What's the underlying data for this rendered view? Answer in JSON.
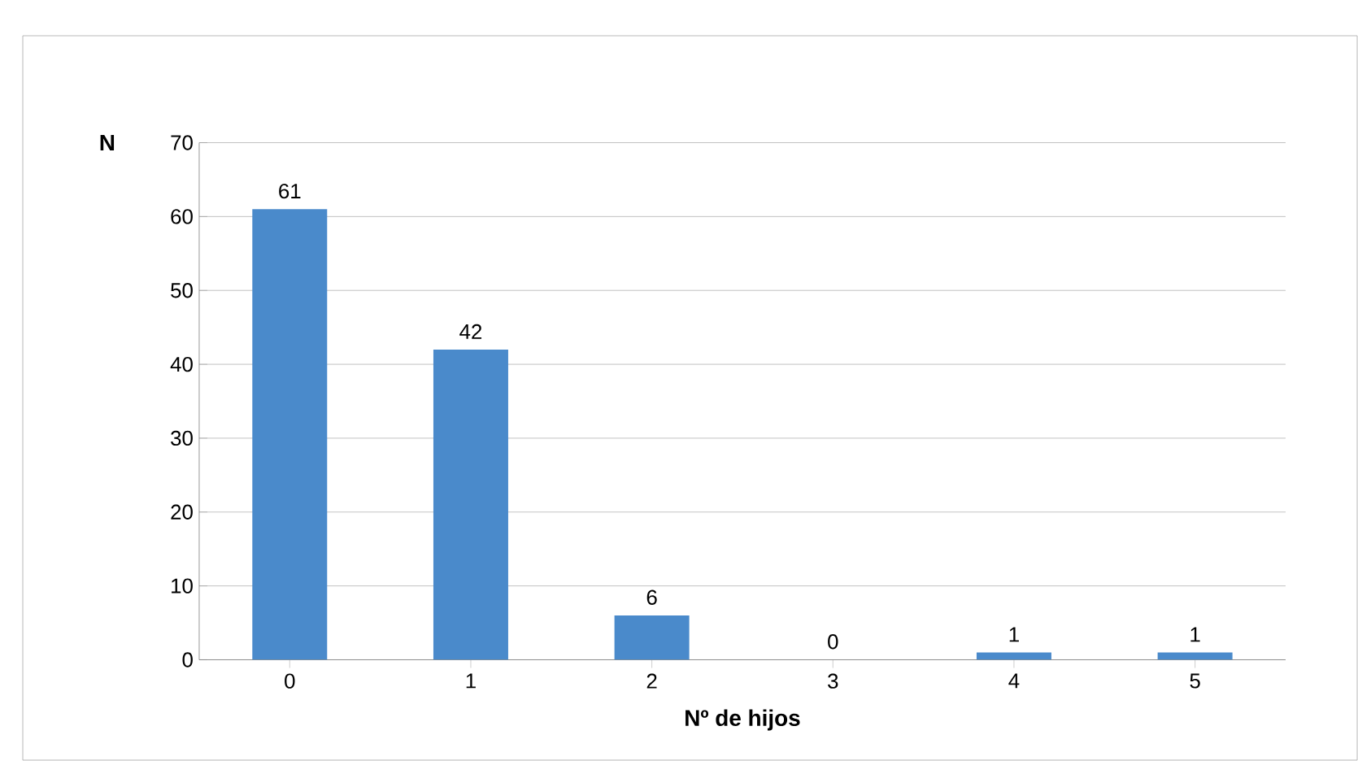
{
  "chart_data": {
    "type": "bar",
    "xlabel": "Nº de hijos",
    "ylabel": "N",
    "categories": [
      "0",
      "1",
      "2",
      "3",
      "4",
      "5"
    ],
    "values": [
      61,
      42,
      6,
      0,
      1,
      1
    ],
    "color": "#4a8acb",
    "ylim": [
      0,
      70
    ],
    "yticks": [
      0,
      10,
      20,
      30,
      40,
      50,
      60,
      70
    ],
    "grid": "y",
    "data_labels": true
  }
}
